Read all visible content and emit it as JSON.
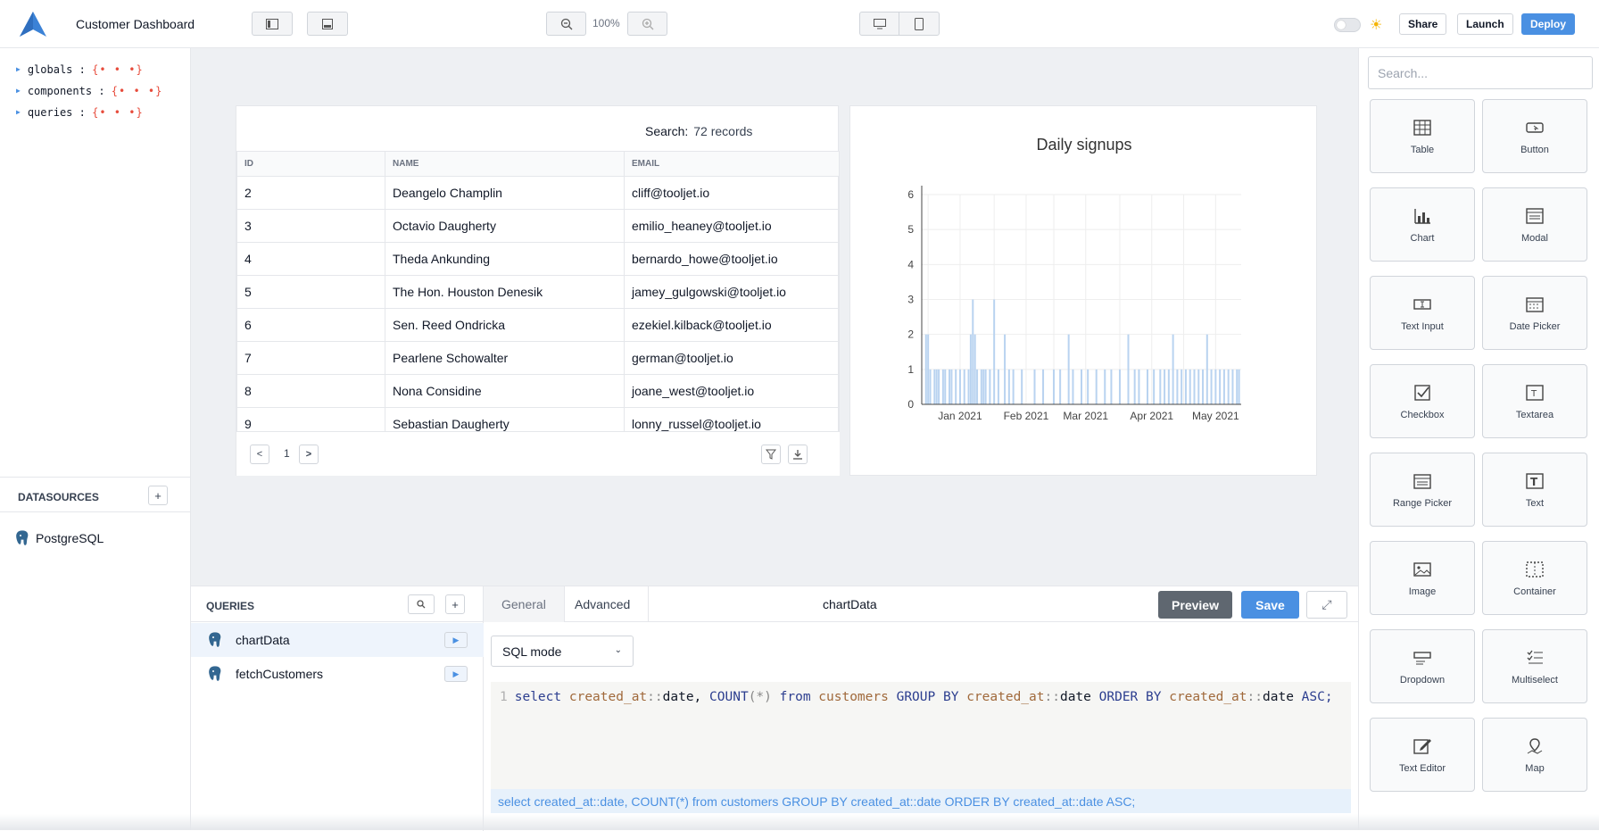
{
  "app": {
    "title": "Customer Dashboard",
    "zoom": "100%"
  },
  "topbar": {
    "share": "Share",
    "launch": "Launch",
    "deploy": "Deploy",
    "colors": {
      "deploy": "#4a90e2"
    }
  },
  "inspector": {
    "items": [
      {
        "key": "globals",
        "sep": ":",
        "value": "{• • •}"
      },
      {
        "key": "components",
        "sep": ":",
        "value": "{• • •}"
      },
      {
        "key": "queries",
        "sep": ":",
        "value": "{• • •}"
      }
    ]
  },
  "datasources": {
    "title": "DATASOURCES",
    "add": "+",
    "items": [
      {
        "name": "PostgreSQL",
        "icon": "postgresql-icon"
      }
    ]
  },
  "table": {
    "search_label": "Search:",
    "records": "72 records",
    "columns": [
      "ID",
      "NAME",
      "EMAIL"
    ],
    "rows": [
      [
        "2",
        "Deangelo Champlin",
        "cliff@tooljet.io"
      ],
      [
        "3",
        "Octavio Daugherty",
        "emilio_heaney@tooljet.io"
      ],
      [
        "4",
        "Theda Ankunding",
        "bernardo_howe@tooljet.io"
      ],
      [
        "5",
        "The Hon. Houston Denesik",
        "jamey_gulgowski@tooljet.io"
      ],
      [
        "6",
        "Sen. Reed Ondricka",
        "ezekiel.kilback@tooljet.io"
      ],
      [
        "7",
        "Pearlene Schowalter",
        "german@tooljet.io"
      ],
      [
        "8",
        "Nona Considine",
        "joane_west@tooljet.io"
      ],
      [
        "9",
        "Sebastian Daugherty",
        "lonny_russel@tooljet.io"
      ]
    ],
    "pagination": {
      "prev": "<",
      "page": "1",
      "next": ">"
    }
  },
  "chart_data": {
    "type": "bar",
    "title": "Daily signups",
    "xlabel": "",
    "ylabel": "",
    "ylim": [
      0,
      6
    ],
    "yticks": [
      "0",
      "1",
      "2",
      "3",
      "4",
      "5",
      "6"
    ],
    "xticks": [
      "Jan 2021",
      "Feb 2021",
      "Mar 2021",
      "Apr 2021",
      "May 2021"
    ],
    "grid": true,
    "color": "#b9d3f0",
    "x_domain": [
      "2020-12-29",
      "2021-05-28"
    ],
    "x": [
      "2020-12-31",
      "2021-01-01",
      "2021-01-02",
      "2021-01-04",
      "2021-01-05",
      "2021-01-06",
      "2021-01-08",
      "2021-01-09",
      "2021-01-11",
      "2021-01-12",
      "2021-01-14",
      "2021-01-16",
      "2021-01-18",
      "2021-01-20",
      "2021-01-21",
      "2021-01-22",
      "2021-01-23",
      "2021-01-24",
      "2021-01-26",
      "2021-01-27",
      "2021-01-28",
      "2021-01-30",
      "2021-02-01",
      "2021-02-03",
      "2021-02-06",
      "2021-02-08",
      "2021-02-10",
      "2021-02-14",
      "2021-02-20",
      "2021-02-24",
      "2021-03-01",
      "2021-03-04",
      "2021-03-08",
      "2021-03-10",
      "2021-03-14",
      "2021-03-17",
      "2021-03-21",
      "2021-03-25",
      "2021-03-28",
      "2021-04-01",
      "2021-04-05",
      "2021-04-08",
      "2021-04-10",
      "2021-04-14",
      "2021-04-17",
      "2021-04-20",
      "2021-04-22",
      "2021-04-24",
      "2021-04-26",
      "2021-04-28",
      "2021-04-30",
      "2021-05-02",
      "2021-05-04",
      "2021-05-06",
      "2021-05-08",
      "2021-05-10",
      "2021-05-12",
      "2021-05-14",
      "2021-05-16",
      "2021-05-18",
      "2021-05-20",
      "2021-05-22",
      "2021-05-24",
      "2021-05-26",
      "2021-05-27"
    ],
    "values": [
      2,
      2,
      1,
      1,
      1,
      1,
      1,
      1,
      1,
      1,
      1,
      1,
      1,
      1,
      2,
      3,
      2,
      1,
      1,
      1,
      1,
      1,
      3,
      1,
      2,
      1,
      1,
      1,
      1,
      1,
      1,
      1,
      2,
      1,
      1,
      1,
      1,
      1,
      1,
      1,
      2,
      1,
      1,
      1,
      1,
      1,
      1,
      1,
      2,
      1,
      1,
      1,
      1,
      1,
      1,
      1,
      2,
      1,
      1,
      1,
      1,
      1,
      1,
      1,
      1
    ]
  },
  "queries": {
    "title": "QUERIES",
    "items": [
      {
        "name": "chartData",
        "selected": true
      },
      {
        "name": "fetchCustomers",
        "selected": false
      }
    ]
  },
  "editor": {
    "tabs": [
      "General",
      "Advanced"
    ],
    "query_name": "chartData",
    "preview": "Preview",
    "save": "Save",
    "mode": "SQL mode",
    "line_number": "1",
    "sql_preview": "select created_at::date, COUNT(*) from customers GROUP BY created_at::date ORDER BY created_at::date ASC;"
  },
  "widgets": {
    "search_placeholder": "Search...",
    "items": [
      {
        "label": "Table",
        "icon": "table-icon"
      },
      {
        "label": "Button",
        "icon": "button-icon"
      },
      {
        "label": "Chart",
        "icon": "chart-icon"
      },
      {
        "label": "Modal",
        "icon": "modal-icon"
      },
      {
        "label": "Text Input",
        "icon": "text-input-icon"
      },
      {
        "label": "Date Picker",
        "icon": "calendar-icon"
      },
      {
        "label": "Checkbox",
        "icon": "checkbox-icon"
      },
      {
        "label": "Textarea",
        "icon": "textarea-icon"
      },
      {
        "label": "Range Picker",
        "icon": "range-calendar-icon"
      },
      {
        "label": "Text",
        "icon": "text-icon"
      },
      {
        "label": "Image",
        "icon": "image-icon"
      },
      {
        "label": "Container",
        "icon": "container-icon"
      },
      {
        "label": "Dropdown",
        "icon": "dropdown-icon"
      },
      {
        "label": "Multiselect",
        "icon": "multiselect-icon"
      },
      {
        "label": "Text Editor",
        "icon": "text-editor-icon"
      },
      {
        "label": "Map",
        "icon": "map-icon"
      }
    ]
  }
}
